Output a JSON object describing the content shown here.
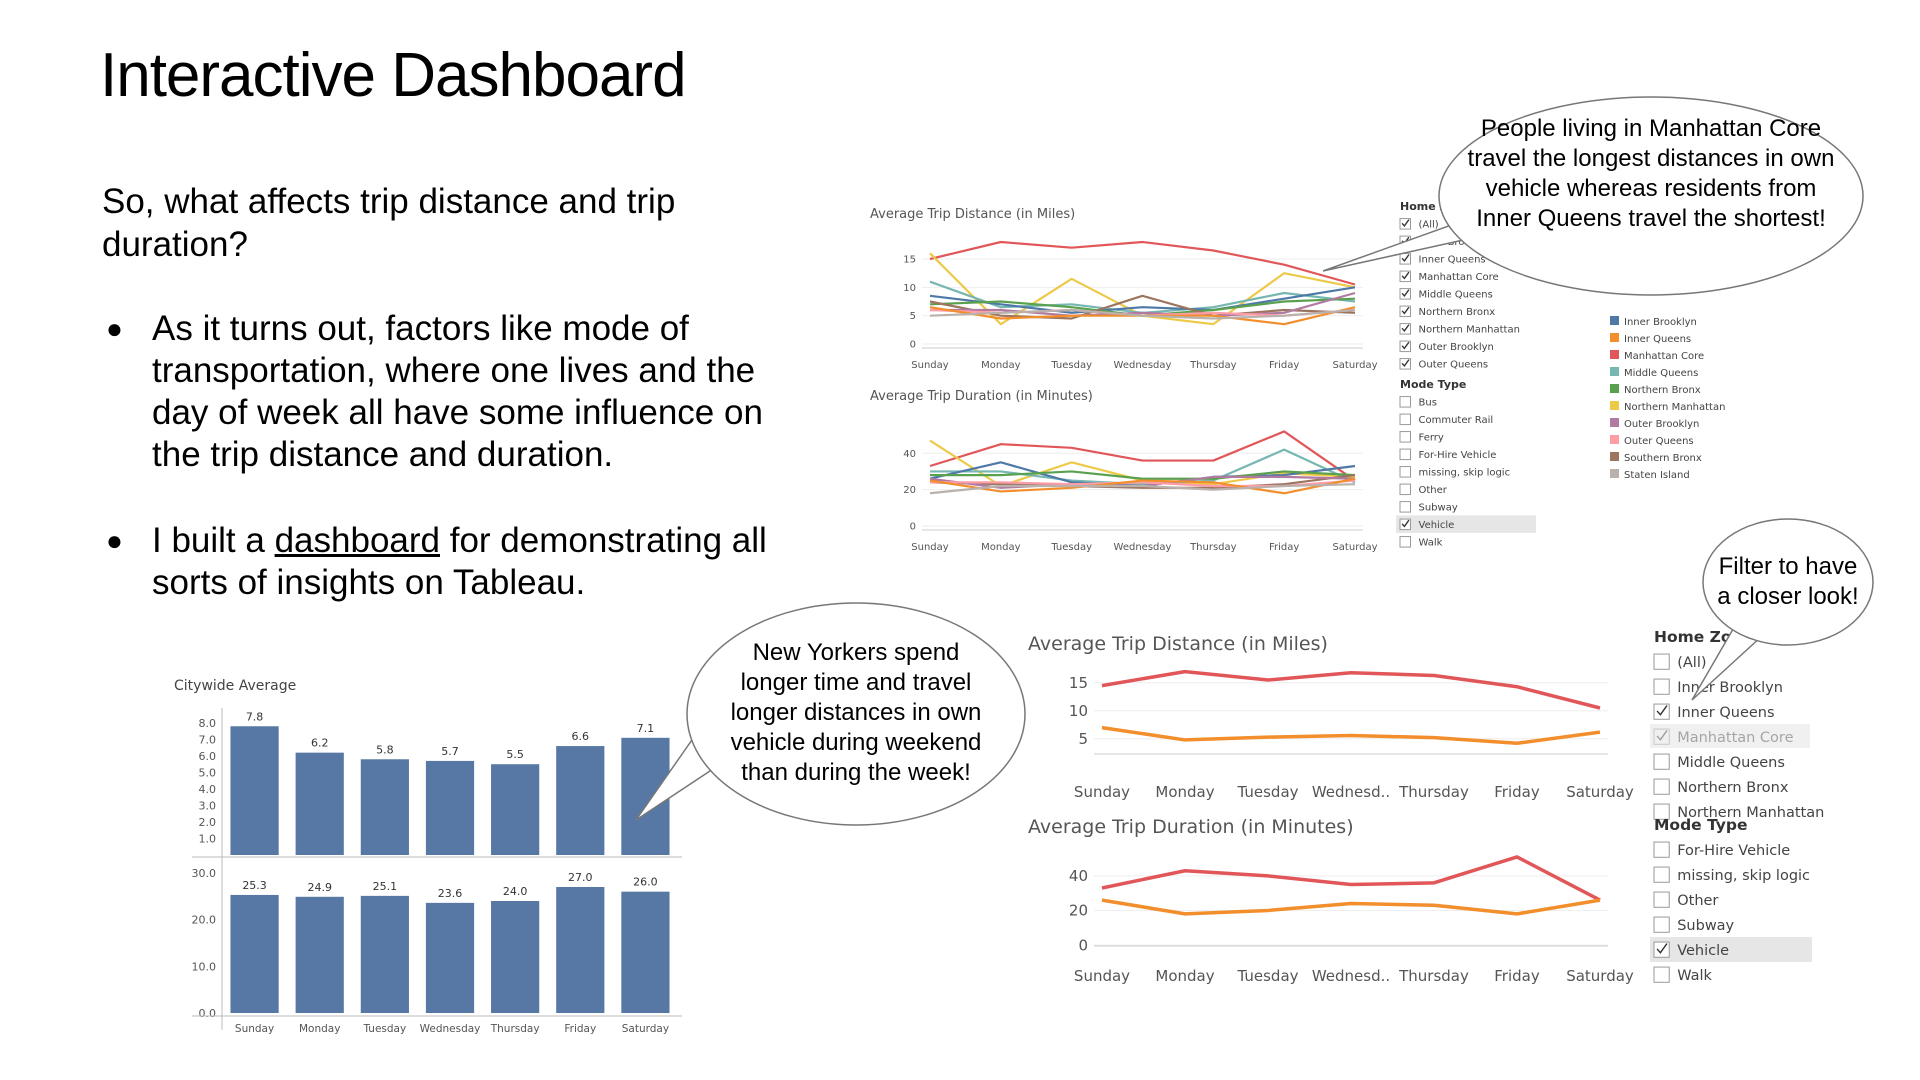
{
  "slide": {
    "title": "Interactive Dashboard",
    "question": "So, what affects trip distance and trip duration?",
    "bullets": [
      {
        "text": "As it turns out, factors like mode of transportation, where one lives and the day of week all have some influence on the trip distance and duration."
      },
      {
        "pre": "I built a ",
        "link": "dashboard",
        "post": " for demonstrating all sorts of insights on Tableau."
      }
    ]
  },
  "callouts": {
    "top_right": "People living in Manhattan Core travel the longest distances in own vehicle whereas residents from Inner Queens travel the shortest!",
    "middle": "New Yorkers spend longer time and travel longer distances in own vehicle during weekend than during the week!",
    "filter": "Filter to have a closer look!"
  },
  "colors": {
    "Inner Brooklyn": "#4e79a7",
    "Inner Queens": "#f28e2b",
    "Manhattan Core": "#e15759",
    "Middle Queens": "#76b7b2",
    "Northern Bronx": "#59a14f",
    "Northern Manhattan": "#edc948",
    "Outer Brooklyn": "#b07aa1",
    "Outer Queens": "#ff9da7",
    "Southern Bronx": "#9c755f",
    "Staten Island": "#bab0ac",
    "bar": "#5778a4",
    "axis": "#888888"
  },
  "small_dashboard": {
    "days": [
      "Sunday",
      "Monday",
      "Tuesday",
      "Wednesday",
      "Thursday",
      "Friday",
      "Saturday"
    ],
    "title_distance": "Average Trip Distance (in Miles)",
    "title_duration": "Average Trip Duration (in Minutes)",
    "distance_ticks": [
      "15",
      "10",
      "5",
      "0"
    ],
    "duration_ticks": [
      "40",
      "20",
      "0"
    ],
    "home_zone_title": "Home Zone",
    "home_zone_items": [
      {
        "label": "(All)",
        "checked": true
      },
      {
        "label": "Inner Brooklyn",
        "checked": true
      },
      {
        "label": "Inner Queens",
        "checked": true
      },
      {
        "label": "Manhattan Core",
        "checked": true
      },
      {
        "label": "Middle Queens",
        "checked": true
      },
      {
        "label": "Northern Bronx",
        "checked": true
      },
      {
        "label": "Northern Manhattan",
        "checked": true
      },
      {
        "label": "Outer Brooklyn",
        "checked": true
      },
      {
        "label": "Outer Queens",
        "checked": true
      }
    ],
    "mode_type_title": "Mode Type",
    "mode_type_items": [
      {
        "label": "Bus",
        "checked": false
      },
      {
        "label": "Commuter Rail",
        "checked": false
      },
      {
        "label": "Ferry",
        "checked": false
      },
      {
        "label": "For-Hire Vehicle",
        "checked": false
      },
      {
        "label": "missing, skip logic",
        "checked": false
      },
      {
        "label": "Other",
        "checked": false
      },
      {
        "label": "Subway",
        "checked": false
      },
      {
        "label": "Vehicle",
        "checked": true
      },
      {
        "label": "Walk",
        "checked": false
      }
    ],
    "legend": [
      "Inner Brooklyn",
      "Inner Queens",
      "Manhattan Core",
      "Middle Queens",
      "Northern Bronx",
      "Northern Manhattan",
      "Outer Brooklyn",
      "Outer Queens",
      "Southern Bronx",
      "Staten Island"
    ]
  },
  "citywide": {
    "title": "Citywide Average",
    "days": [
      "Sunday",
      "Monday",
      "Tuesday",
      "Wednesday",
      "Thursday",
      "Friday",
      "Saturday"
    ],
    "distance_values": [
      7.8,
      6.2,
      5.8,
      5.7,
      5.5,
      6.6,
      7.1
    ],
    "distance_labels": [
      "7.8",
      "6.2",
      "5.8",
      "5.7",
      "5.5",
      "6.6",
      "7.1"
    ],
    "distance_ticks": [
      "8.0",
      "7.0",
      "6.0",
      "5.0",
      "4.0",
      "3.0",
      "2.0",
      "1.0"
    ],
    "duration_values": [
      25.3,
      24.9,
      25.1,
      23.6,
      24.0,
      27.0,
      26.0
    ],
    "duration_labels": [
      "25.3",
      "24.9",
      "25.1",
      "23.6",
      "24.0",
      "27.0",
      "26.0"
    ],
    "duration_ticks": [
      "30.0",
      "20.0",
      "10.0",
      "0.0"
    ]
  },
  "filtered_dashboard": {
    "days": [
      "Sunday",
      "Monday",
      "Tuesday",
      "Wednesd..",
      "Thursday",
      "Friday",
      "Saturday"
    ],
    "title_distance": "Average Trip Distance (in Miles)",
    "title_duration": "Average Trip Duration (in Minutes)",
    "distance_ticks": [
      "15",
      "10",
      "5"
    ],
    "duration_ticks": [
      "40",
      "20",
      "0"
    ],
    "home_zone_title": "Home Zone",
    "home_zone_items": [
      {
        "label": "(All)",
        "checked": false
      },
      {
        "label": "Inner Brooklyn",
        "checked": false
      },
      {
        "label": "Inner Queens",
        "checked": true
      },
      {
        "label": "Manhattan Core",
        "checked": true
      },
      {
        "label": "Middle Queens",
        "checked": false
      },
      {
        "label": "Northern Bronx",
        "checked": false
      },
      {
        "label": "Northern Manhattan",
        "checked": false
      }
    ],
    "mode_type_title": "Mode Type",
    "mode_type_items": [
      {
        "label": "For-Hire Vehicle",
        "checked": false
      },
      {
        "label": "missing, skip logic",
        "checked": false
      },
      {
        "label": "Other",
        "checked": false
      },
      {
        "label": "Subway",
        "checked": false
      },
      {
        "label": "Vehicle",
        "checked": true
      },
      {
        "label": "Walk",
        "checked": false
      }
    ]
  },
  "chart_data": [
    {
      "type": "line",
      "title": "Average Trip Distance (in Miles)",
      "x": [
        "Sunday",
        "Monday",
        "Tuesday",
        "Wednesday",
        "Thursday",
        "Friday",
        "Saturday"
      ],
      "ylim": [
        0,
        18
      ],
      "series": [
        {
          "name": "Manhattan Core",
          "values": [
            15.0,
            18.0,
            17.0,
            18.0,
            16.5,
            14.0,
            10.5
          ]
        },
        {
          "name": "Northern Manhattan",
          "values": [
            16.0,
            3.5,
            11.5,
            5.0,
            3.5,
            12.5,
            10.0
          ]
        },
        {
          "name": "Middle Queens",
          "values": [
            11.0,
            6.5,
            7.0,
            5.5,
            6.5,
            9.0,
            7.5
          ]
        },
        {
          "name": "Inner Brooklyn",
          "values": [
            8.5,
            7.0,
            5.5,
            6.5,
            6.0,
            8.0,
            10.0
          ]
        },
        {
          "name": "Northern Bronx",
          "values": [
            7.0,
            7.5,
            6.5,
            5.0,
            6.0,
            7.5,
            8.0
          ]
        },
        {
          "name": "Southern Bronx",
          "values": [
            7.5,
            5.0,
            4.5,
            8.5,
            5.0,
            6.0,
            5.5
          ]
        },
        {
          "name": "Outer Brooklyn",
          "values": [
            6.0,
            6.0,
            5.0,
            5.5,
            5.0,
            5.5,
            9.0
          ]
        },
        {
          "name": "Outer Queens",
          "values": [
            6.0,
            5.5,
            6.0,
            5.0,
            5.5,
            5.0,
            6.0
          ]
        },
        {
          "name": "Inner Queens",
          "values": [
            6.5,
            4.5,
            5.0,
            5.0,
            5.0,
            3.5,
            6.5
          ]
        },
        {
          "name": "Staten Island",
          "values": [
            5.0,
            5.5,
            6.0,
            5.0,
            4.5,
            5.0,
            6.0
          ]
        }
      ]
    },
    {
      "type": "line",
      "title": "Average Trip Duration (in Minutes)",
      "x": [
        "Sunday",
        "Monday",
        "Tuesday",
        "Wednesday",
        "Thursday",
        "Friday",
        "Saturday"
      ],
      "ylim": [
        0,
        55
      ],
      "series": [
        {
          "name": "Manhattan Core",
          "values": [
            33,
            45,
            43,
            36,
            36,
            52,
            25
          ]
        },
        {
          "name": "Northern Manhattan",
          "values": [
            47,
            22,
            35,
            25,
            23,
            29,
            27
          ]
        },
        {
          "name": "Middle Queens",
          "values": [
            30,
            30,
            25,
            23,
            25,
            42,
            24
          ]
        },
        {
          "name": "Inner Brooklyn",
          "values": [
            26,
            35,
            24,
            22,
            27,
            28,
            33
          ]
        },
        {
          "name": "Northern Bronx",
          "values": [
            28,
            28,
            30,
            26,
            26,
            30,
            28
          ]
        },
        {
          "name": "Southern Bronx",
          "values": [
            24,
            23,
            22,
            21,
            21,
            23,
            28
          ]
        },
        {
          "name": "Outer Brooklyn",
          "values": [
            26,
            21,
            23,
            22,
            27,
            27,
            26
          ]
        },
        {
          "name": "Outer Queens",
          "values": [
            24,
            24,
            23,
            24,
            22,
            22,
            25
          ]
        },
        {
          "name": "Inner Queens",
          "values": [
            25,
            19,
            21,
            25,
            24,
            18,
            26
          ]
        },
        {
          "name": "Staten Island",
          "values": [
            18,
            22,
            22,
            22,
            20,
            22,
            23
          ]
        }
      ]
    },
    {
      "type": "bar",
      "title": "Citywide Average",
      "categories": [
        "Sunday",
        "Monday",
        "Tuesday",
        "Wednesday",
        "Thursday",
        "Friday",
        "Saturday"
      ],
      "values": [
        7.8,
        6.2,
        5.8,
        5.7,
        5.5,
        6.6,
        7.1
      ],
      "ylim": [
        0,
        8.3
      ]
    },
    {
      "type": "bar",
      "title": "",
      "categories": [
        "Sunday",
        "Monday",
        "Tuesday",
        "Wednesday",
        "Thursday",
        "Friday",
        "Saturday"
      ],
      "values": [
        25.3,
        24.9,
        25.1,
        23.6,
        24.0,
        27.0,
        26.0
      ],
      "ylim": [
        0,
        30
      ]
    },
    {
      "type": "line",
      "title": "Average Trip Distance (in Miles)",
      "x": [
        "Sunday",
        "Monday",
        "Tuesday",
        "Wednesd..",
        "Thursday",
        "Friday",
        "Saturday"
      ],
      "ylim": [
        3,
        18
      ],
      "series": [
        {
          "name": "Manhattan Core",
          "values": [
            14.5,
            17.0,
            15.5,
            16.8,
            16.3,
            14.3,
            10.5
          ]
        },
        {
          "name": "Inner Queens",
          "values": [
            7.0,
            4.8,
            5.3,
            5.6,
            5.2,
            4.2,
            6.2
          ]
        }
      ]
    },
    {
      "type": "line",
      "title": "Average Trip Duration (in Minutes)",
      "x": [
        "Sunday",
        "Monday",
        "Tuesday",
        "Wednesd..",
        "Thursday",
        "Friday",
        "Saturday"
      ],
      "ylim": [
        0,
        55
      ],
      "series": [
        {
          "name": "Manhattan Core",
          "values": [
            33,
            43,
            40,
            35,
            36,
            51,
            26
          ]
        },
        {
          "name": "Inner Queens",
          "values": [
            26,
            18,
            20,
            24,
            23,
            18,
            26
          ]
        }
      ]
    }
  ]
}
